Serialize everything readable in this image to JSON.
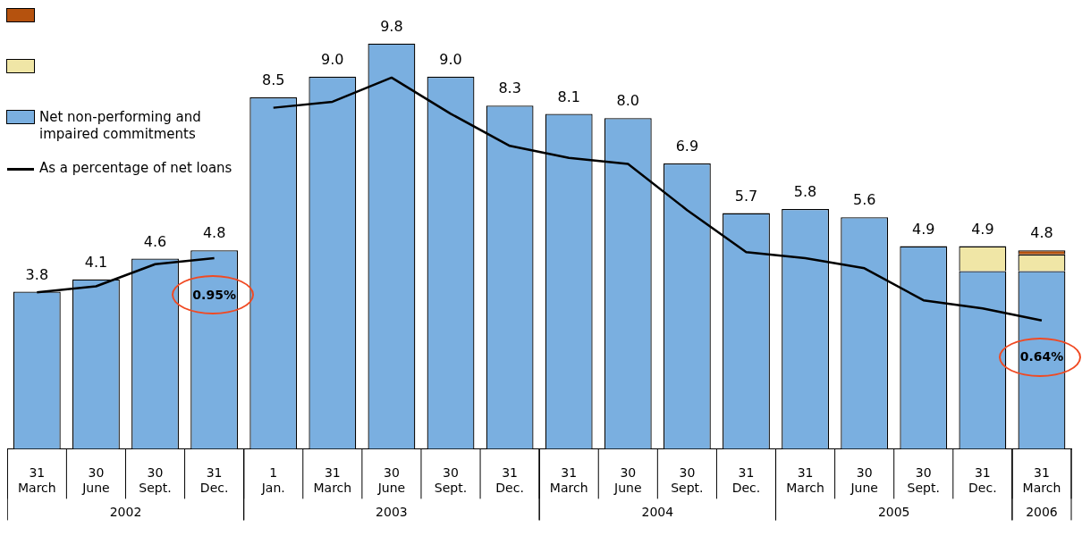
{
  "chart_data": {
    "type": "bar",
    "stacked": true,
    "categories": [
      "31 March",
      "30 June",
      "30 Sept.",
      "31 Dec.",
      "1 Jan.",
      "31 March",
      "30 June",
      "30 Sept.",
      "31 Dec.",
      "31 March",
      "30 June",
      "30 Sept.",
      "31 Dec.",
      "31 March",
      "30 June",
      "30 Sept.",
      "31 Dec.",
      "31 March"
    ],
    "annotations": [
      "2002",
      "2003",
      "2004",
      "2005",
      "2006"
    ],
    "tick_labels": "x",
    "legend": "top left",
    "totals": [
      null,
      null,
      null,
      null,
      null,
      null,
      null,
      null,
      null,
      null,
      null,
      null,
      null,
      null,
      null,
      null,
      "4.9",
      "4.8"
    ],
    "series": [
      {
        "name": "Net non-performing and impaired commitments",
        "color": "#7aafe0",
        "values": [
          3.8,
          4.1,
          4.6,
          4.8,
          8.5,
          9.0,
          9.8,
          9.0,
          8.3,
          8.1,
          8.0,
          6.9,
          5.7,
          5.8,
          5.6,
          4.9,
          4.3,
          4.3
        ],
        "value_labels": [
          "3.8",
          "4.1",
          "4.6",
          "4.8",
          "8.5",
          "9.0",
          "9.8",
          "9.0",
          "8.3",
          "8.1",
          "8.0",
          "6.9",
          "5.7",
          "5.8",
          "5.6",
          "4.9",
          null,
          null
        ]
      },
      {
        "color": "#f0e6a6",
        "values": [
          null,
          null,
          null,
          null,
          null,
          null,
          null,
          null,
          null,
          null,
          null,
          null,
          null,
          null,
          null,
          null,
          0.6,
          0.4
        ]
      },
      {
        "color": "#b5520e",
        "values": [
          null,
          null,
          null,
          null,
          null,
          null,
          null,
          null,
          null,
          null,
          null,
          null,
          null,
          null,
          null,
          null,
          null,
          0.1
        ]
      },
      {
        "name": "As a percentage of net loans",
        "type": "line",
        "axis": "y2",
        "color": "#000000",
        "values": [
          0.78,
          0.81,
          0.92,
          0.95,
          null,
          null,
          null,
          null,
          null,
          null,
          null,
          null,
          null,
          null,
          null,
          null,
          null,
          null
        ],
        "value_labels": [
          null,
          null,
          null,
          "0.95%",
          null,
          null,
          null,
          null,
          null,
          null,
          null,
          null,
          null,
          null,
          null,
          null,
          null,
          null
        ]
      },
      {
        "type": "line",
        "axis": "y2",
        "color": "#000000",
        "values": [
          null,
          null,
          null,
          null,
          1.7,
          1.73,
          1.85,
          1.67,
          1.51,
          1.45,
          1.42,
          1.19,
          0.98,
          0.95,
          0.9,
          0.74,
          0.7,
          0.64
        ],
        "value_labels": [
          null,
          null,
          null,
          null,
          null,
          null,
          null,
          null,
          null,
          null,
          null,
          null,
          null,
          null,
          null,
          null,
          null,
          "0.64%"
        ]
      }
    ]
  }
}
